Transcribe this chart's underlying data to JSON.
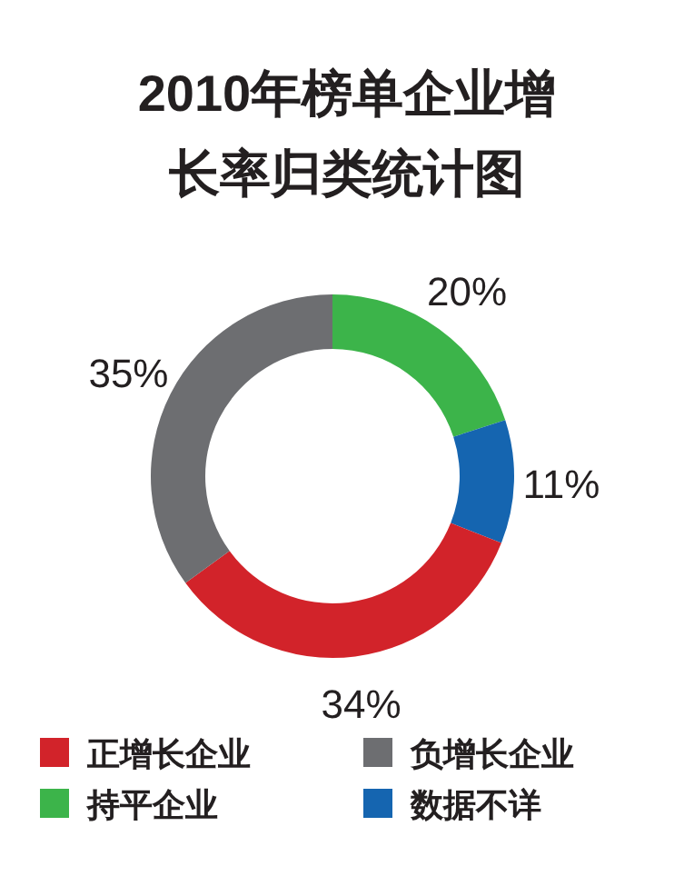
{
  "chart_data": {
    "type": "donut",
    "title": "2010年榜单企业增长率归类统计图",
    "categories": [
      "正增长企业",
      "负增长企业",
      "持平企业",
      "数据不详"
    ],
    "values": [
      34,
      35,
      20,
      11
    ],
    "colors": [
      "#d2232a",
      "#6d6e71",
      "#3cb44a",
      "#1565b0"
    ],
    "value_labels": [
      "34%",
      "35%",
      "20%",
      "11%"
    ],
    "legend": "bottom"
  }
}
